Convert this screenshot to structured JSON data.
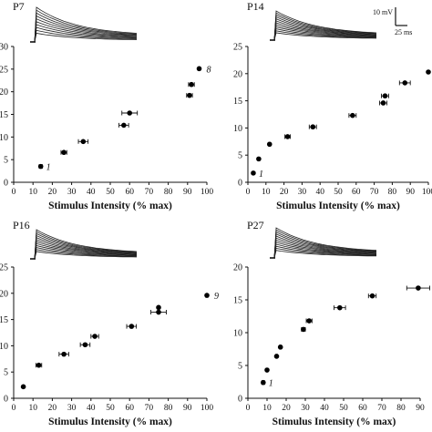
{
  "chart_data": [
    {
      "type": "scatter",
      "panel": "P7",
      "xlabel": "Stimulus Intensity (% max)",
      "xlim": [
        0,
        100
      ],
      "xticks": [
        0,
        10,
        20,
        30,
        40,
        50,
        60,
        70,
        80,
        90,
        100
      ],
      "ylim": [
        0,
        30
      ],
      "yticks": [
        0,
        5,
        10,
        15,
        20,
        25,
        30
      ],
      "points": [
        {
          "x": 14,
          "y": 3.5,
          "xerr": 0.8
        },
        {
          "x": 26,
          "y": 6.6,
          "xerr": 1.5
        },
        {
          "x": 36,
          "y": 9.0,
          "xerr": 2.5
        },
        {
          "x": 57,
          "y": 12.6,
          "xerr": 2.5
        },
        {
          "x": 60,
          "y": 15.3,
          "xerr": 4
        },
        {
          "x": 91,
          "y": 19.2,
          "xerr": 1.5
        },
        {
          "x": 92,
          "y": 21.6,
          "xerr": 1.5
        },
        {
          "x": 96,
          "y": 25.1,
          "xerr": 0
        }
      ],
      "first_label": "1",
      "last_label": "8"
    },
    {
      "type": "scatter",
      "panel": "P14",
      "xlabel": "Stimulus Intensity (% max)",
      "xlim": [
        0,
        100
      ],
      "xticks": [
        0,
        10,
        20,
        30,
        40,
        50,
        60,
        70,
        80,
        90,
        100
      ],
      "ylim": [
        0,
        25
      ],
      "yticks": [
        0,
        5,
        10,
        15,
        20,
        25
      ],
      "points": [
        {
          "x": 3,
          "y": 1.7,
          "xerr": 0
        },
        {
          "x": 6,
          "y": 4.3,
          "xerr": 0
        },
        {
          "x": 12,
          "y": 7.0,
          "xerr": 0.5
        },
        {
          "x": 22,
          "y": 8.4,
          "xerr": 1.5
        },
        {
          "x": 36,
          "y": 10.2,
          "xerr": 2
        },
        {
          "x": 58,
          "y": 12.3,
          "xerr": 2
        },
        {
          "x": 75,
          "y": 14.6,
          "xerr": 2
        },
        {
          "x": 76,
          "y": 15.9,
          "xerr": 2
        },
        {
          "x": 87,
          "y": 18.3,
          "xerr": 3
        },
        {
          "x": 100,
          "y": 20.3,
          "xerr": 0
        }
      ],
      "first_label": "1",
      "scalebar_v": "10 mV",
      "scalebar_h": "25 ms"
    },
    {
      "type": "scatter",
      "panel": "P16",
      "xlabel": "Stimulus Intensity (% max)",
      "xlim": [
        0,
        100
      ],
      "xticks": [
        0,
        10,
        20,
        30,
        40,
        50,
        60,
        70,
        80,
        90,
        100
      ],
      "ylim": [
        0,
        25
      ],
      "yticks": [
        0,
        5,
        10,
        15,
        20,
        25
      ],
      "points": [
        {
          "x": 5,
          "y": 2.2,
          "xerr": 0
        },
        {
          "x": 13,
          "y": 6.3,
          "xerr": 1.5
        },
        {
          "x": 26,
          "y": 8.4,
          "xerr": 2.5
        },
        {
          "x": 37,
          "y": 10.2,
          "xerr": 2.5
        },
        {
          "x": 42,
          "y": 11.8,
          "xerr": 2
        },
        {
          "x": 61,
          "y": 13.7,
          "xerr": 2.5
        },
        {
          "x": 75,
          "y": 16.4,
          "xerr": 4
        },
        {
          "x": 75,
          "y": 17.3,
          "xerr": 0
        },
        {
          "x": 100,
          "y": 19.6,
          "xerr": 0
        }
      ],
      "last_label": "9"
    },
    {
      "type": "scatter",
      "panel": "P27",
      "xlabel": "Stimulus Intensity (% max)",
      "xlim": [
        0,
        90
      ],
      "xticks": [
        0,
        10,
        20,
        30,
        40,
        50,
        60,
        70,
        80,
        90
      ],
      "ylim": [
        0,
        20
      ],
      "yticks": [
        0,
        5,
        10,
        15,
        20
      ],
      "points": [
        {
          "x": 8,
          "y": 2.4,
          "xerr": 0.7
        },
        {
          "x": 10,
          "y": 4.3,
          "xerr": 0.5
        },
        {
          "x": 15,
          "y": 6.4,
          "xerr": 0.5
        },
        {
          "x": 17,
          "y": 7.8,
          "xerr": 0.5
        },
        {
          "x": 29,
          "y": 10.5,
          "xerr": 1
        },
        {
          "x": 32,
          "y": 11.8,
          "xerr": 1.5
        },
        {
          "x": 48,
          "y": 13.8,
          "xerr": 3
        },
        {
          "x": 65,
          "y": 15.6,
          "xerr": 2
        },
        {
          "x": 89,
          "y": 16.8,
          "xerr": 6
        }
      ],
      "first_label": "1"
    }
  ]
}
